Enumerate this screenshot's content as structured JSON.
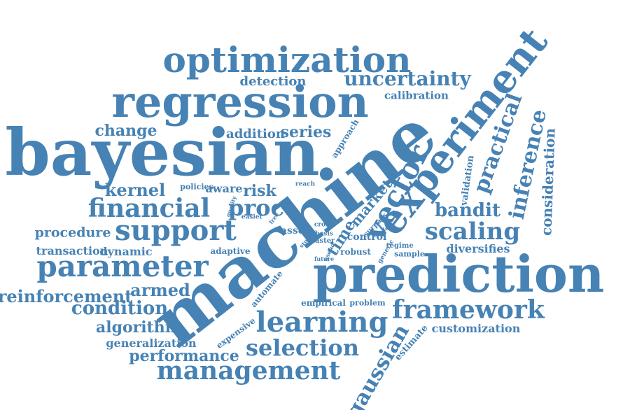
{
  "word_cloud": {
    "color": "#4682B4",
    "words": [
      {
        "text": "optimization"
      },
      {
        "text": "regression"
      },
      {
        "text": "bayesian"
      },
      {
        "text": "machine"
      },
      {
        "text": "prediction"
      },
      {
        "text": "experiment"
      },
      {
        "text": "uncertainty"
      },
      {
        "text": "detection"
      },
      {
        "text": "calibration"
      },
      {
        "text": "change"
      },
      {
        "text": "addition"
      },
      {
        "text": "series"
      },
      {
        "text": "approach"
      },
      {
        "text": "practical"
      },
      {
        "text": "inference"
      },
      {
        "text": "consideration"
      },
      {
        "text": "vector"
      },
      {
        "text": "kernel"
      },
      {
        "text": "policies"
      },
      {
        "text": "aware"
      },
      {
        "text": "risk"
      },
      {
        "text": "reach"
      },
      {
        "text": "financial"
      },
      {
        "text": "proc"
      },
      {
        "text": "market"
      },
      {
        "text": "time"
      },
      {
        "text": "validation"
      },
      {
        "text": "bandit"
      },
      {
        "text": "support"
      },
      {
        "text": "procedure"
      },
      {
        "text": "scaling"
      },
      {
        "text": "quality"
      },
      {
        "text": "easier"
      },
      {
        "text": "free"
      },
      {
        "text": "asset"
      },
      {
        "text": "surpass"
      },
      {
        "text": "cross"
      },
      {
        "text": "model"
      },
      {
        "text": "thesis"
      },
      {
        "text": "study"
      },
      {
        "text": "faster"
      },
      {
        "text": "control"
      },
      {
        "text": "regime"
      },
      {
        "text": "diversifies"
      },
      {
        "text": "transaction"
      },
      {
        "text": "dynamic"
      },
      {
        "text": "adaptive"
      },
      {
        "text": "useful"
      },
      {
        "text": "generic"
      },
      {
        "text": "robust"
      },
      {
        "text": "sample"
      },
      {
        "text": "future"
      },
      {
        "text": "parameter"
      },
      {
        "text": "reinforcement"
      },
      {
        "text": "armed"
      },
      {
        "text": "condition"
      },
      {
        "text": "automate"
      },
      {
        "text": "empirical"
      },
      {
        "text": "problem"
      },
      {
        "text": "framework"
      },
      {
        "text": "learning"
      },
      {
        "text": "algorithm"
      },
      {
        "text": "customization"
      },
      {
        "text": "generalization"
      },
      {
        "text": "expensive"
      },
      {
        "text": "estimate"
      },
      {
        "text": "selection"
      },
      {
        "text": "performance"
      },
      {
        "text": "management"
      },
      {
        "text": "gaussian"
      }
    ]
  }
}
